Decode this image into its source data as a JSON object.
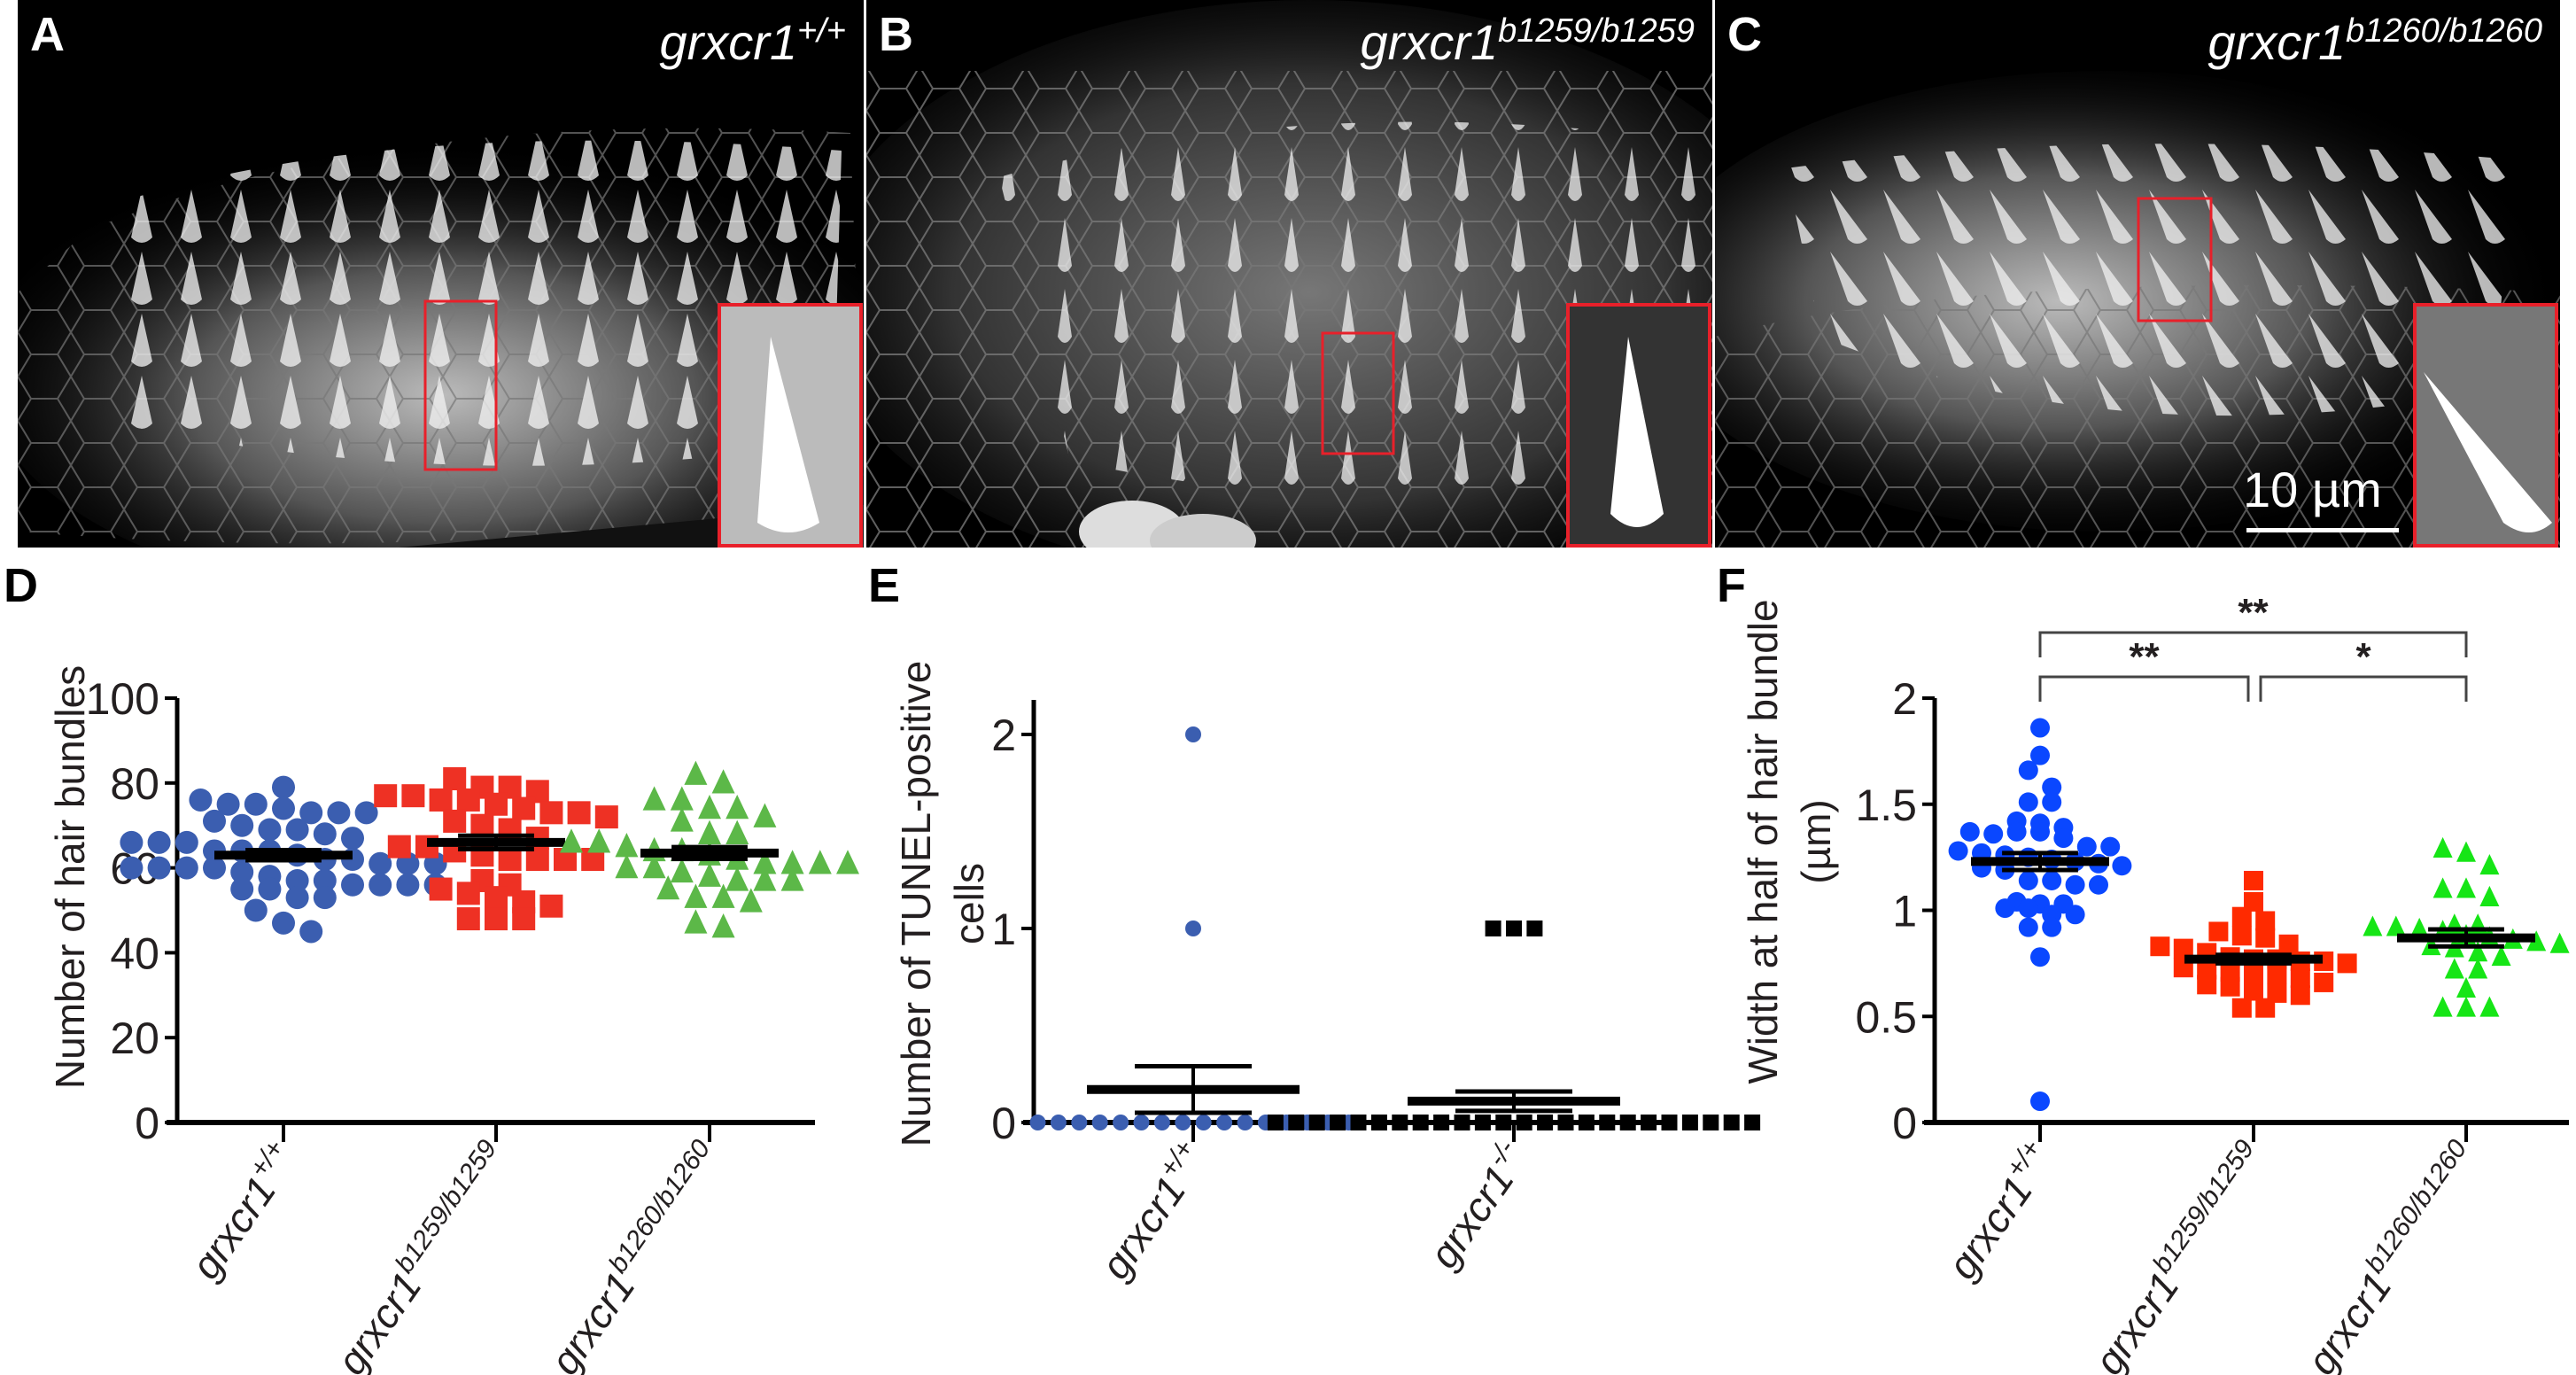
{
  "panels": {
    "A": {
      "label": "A",
      "genotype_base": "grxcr1",
      "genotype_sup": "+/+"
    },
    "B": {
      "label": "B",
      "genotype_base": "grxcr1",
      "genotype_sup": "b1259/b1259"
    },
    "C": {
      "label": "C",
      "genotype_base": "grxcr1",
      "genotype_sup": "b1260/b1260",
      "scale_bar": "10 µm"
    }
  },
  "colors": {
    "blue_D": "#3b5eb0",
    "red": "#ee3124",
    "green_D": "#5cb848",
    "blue_F": "#0a47ff",
    "red_F": "#ff2a00",
    "green_F": "#16e516",
    "inset_border": "#e8202a",
    "axis": "#000000"
  },
  "chart_data": [
    {
      "panel": "D",
      "type": "scatter",
      "ylabel": "Number of hair bundles",
      "ylim": [
        0,
        100
      ],
      "yticks": [
        "0",
        "20",
        "40",
        "60",
        "80",
        "100"
      ],
      "categories": [
        {
          "base": "grxcr1",
          "sup": "+/+"
        },
        {
          "base": "grxcr1",
          "sup": "b1259/b1259"
        },
        {
          "base": "grxcr1",
          "sup": "b1260/b1260"
        }
      ],
      "series": [
        {
          "name": "grxcr1+/+",
          "marker": "circle",
          "mean": 63,
          "sem": 1.2,
          "values": [
            79,
            76,
            75,
            75,
            74,
            73,
            73,
            73,
            71,
            70,
            69,
            69,
            68,
            67,
            66,
            66,
            66,
            64,
            64,
            64,
            63,
            62,
            62,
            61,
            61,
            61,
            60,
            60,
            60,
            60,
            59,
            58,
            57,
            57,
            56,
            56,
            56,
            56,
            55,
            55,
            53,
            53,
            50,
            47,
            45
          ]
        },
        {
          "name": "grxcr1b1259/b1259",
          "marker": "square",
          "mean": 66,
          "sem": 1.6,
          "values": [
            81,
            79,
            79,
            78,
            77,
            77,
            76,
            76,
            75,
            74,
            73,
            73,
            72,
            71,
            70,
            69,
            67,
            65,
            65,
            64,
            63,
            62,
            62,
            62,
            62,
            57,
            56,
            55,
            54,
            53,
            52,
            51,
            48,
            48,
            48
          ]
        },
        {
          "name": "grxcr1b1260/b1260",
          "marker": "triangle",
          "mean": 63.5,
          "sem": 1.4,
          "values": [
            82,
            80,
            76,
            76,
            74,
            74,
            72,
            71,
            68,
            68,
            66,
            66,
            65,
            64,
            64,
            63,
            62,
            61,
            61,
            61,
            61,
            60,
            60,
            59,
            58,
            57,
            57,
            57,
            55,
            53,
            53,
            52,
            47,
            46
          ]
        }
      ]
    },
    {
      "panel": "E",
      "type": "scatter",
      "ylabel": "Number of TUNEL-positive cells",
      "ylabel_lines": [
        "Number of TUNEL-positive",
        "cells"
      ],
      "ylim": [
        0,
        2.2
      ],
      "yticks": [
        "0",
        "1",
        "2"
      ],
      "categories": [
        {
          "base": "grxcr1",
          "sup": "+/+"
        },
        {
          "base": "grxcr1",
          "sup": "-/-"
        }
      ],
      "series": [
        {
          "name": "grxcr1+/+",
          "marker": "circle",
          "mean": 0.17,
          "sem": 0.12,
          "values": [
            2,
            1,
            0,
            0,
            0,
            0,
            0,
            0,
            0,
            0,
            0,
            0,
            0,
            0,
            0,
            0,
            0,
            0
          ]
        },
        {
          "name": "grxcr1-/-",
          "marker": "square",
          "mean": 0.11,
          "sem": 0.05,
          "values": [
            1,
            1,
            1,
            0,
            0,
            0,
            0,
            0,
            0,
            0,
            0,
            0,
            0,
            0,
            0,
            0,
            0,
            0,
            0,
            0,
            0,
            0,
            0,
            0,
            0,
            0,
            0
          ]
        }
      ]
    },
    {
      "panel": "F",
      "type": "scatter",
      "ylabel": "Width at half of hair bundle (µm)",
      "ylabel_lines": [
        "Width at half of hair bundle",
        "(µm)"
      ],
      "ylim": [
        0,
        2
      ],
      "yticks": [
        "0",
        "0.5",
        "1",
        "1.5",
        "2"
      ],
      "categories": [
        {
          "base": "grxcr1",
          "sup": "+/+"
        },
        {
          "base": "grxcr1",
          "sup": "b1259/b1259"
        },
        {
          "base": "grxcr1",
          "sup": "b1260/b1260"
        }
      ],
      "series": [
        {
          "name": "grxcr1+/+",
          "marker": "circle",
          "mean": 1.23,
          "sem": 0.04,
          "values": [
            1.86,
            1.73,
            1.66,
            1.58,
            1.51,
            1.51,
            1.42,
            1.41,
            1.39,
            1.37,
            1.36,
            1.37,
            1.37,
            1.34,
            1.3,
            1.3,
            1.28,
            1.27,
            1.26,
            1.25,
            1.24,
            1.23,
            1.22,
            1.21,
            1.2,
            1.19,
            1.14,
            1.14,
            1.12,
            1.12,
            1.04,
            1.03,
            1.03,
            1.01,
            1.01,
            0.98,
            0.98,
            0.92,
            0.92,
            0.78,
            0.1
          ]
        },
        {
          "name": "grxcr1b1259/b1259",
          "marker": "square",
          "mean": 0.77,
          "sem": 0.02,
          "values": [
            1.14,
            1.04,
            0.97,
            0.95,
            0.9,
            0.88,
            0.87,
            0.84,
            0.83,
            0.82,
            0.8,
            0.78,
            0.77,
            0.77,
            0.76,
            0.76,
            0.75,
            0.73,
            0.72,
            0.71,
            0.7,
            0.7,
            0.68,
            0.66,
            0.65,
            0.64,
            0.62,
            0.61,
            0.6,
            0.54,
            0.54
          ]
        },
        {
          "name": "grxcr1b1260/b1260",
          "marker": "triangle",
          "mean": 0.87,
          "sem": 0.04,
          "values": [
            1.29,
            1.27,
            1.21,
            1.1,
            1.1,
            1.06,
            0.93,
            0.93,
            0.92,
            0.92,
            0.91,
            0.9,
            0.88,
            0.87,
            0.86,
            0.85,
            0.84,
            0.83,
            0.82,
            0.8,
            0.78,
            0.72,
            0.72,
            0.63,
            0.54,
            0.54,
            0.54
          ]
        }
      ],
      "significance": [
        {
          "from": 0,
          "to": 2,
          "label": "**"
        },
        {
          "from": 0,
          "to": 1,
          "label": "**"
        },
        {
          "from": 1,
          "to": 2,
          "label": "*"
        }
      ]
    }
  ]
}
